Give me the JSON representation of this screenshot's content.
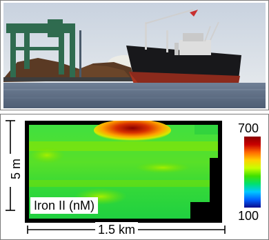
{
  "photo": {
    "subject": "cargo-ship-at-industrial-port"
  },
  "heatmap": {
    "label": "Iron II (nM)",
    "colorbar": {
      "max_label": "700",
      "min_label": "100",
      "colors": [
        "#0a0a8c",
        "#0060ff",
        "#00c8ff",
        "#00e070",
        "#40e000",
        "#c8ff00",
        "#ffd000",
        "#ff6a00",
        "#c80000",
        "#8b0000"
      ]
    }
  },
  "scale": {
    "vertical_label": "5 m",
    "horizontal_label": "1.5 km"
  }
}
